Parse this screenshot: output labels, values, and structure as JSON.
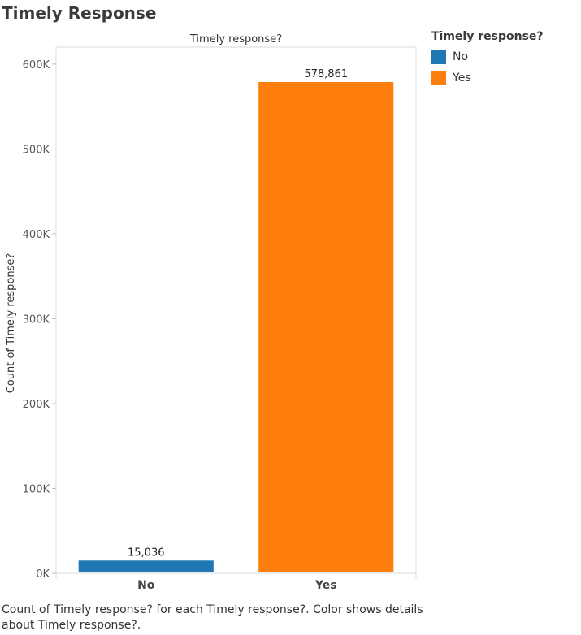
{
  "page": {
    "title": "Timely Response",
    "caption": "Count of Timely response? for each Timely response?.  Color shows details about Timely response?."
  },
  "legend": {
    "title": "Timely response?",
    "items": [
      {
        "label": "No",
        "color": "#1f77b4"
      },
      {
        "label": "Yes",
        "color": "#ff7f0e"
      }
    ]
  },
  "chart_data": {
    "type": "bar",
    "title": "Timely response?",
    "xlabel": "",
    "ylabel": "Count of Timely response?",
    "categories": [
      "No",
      "Yes"
    ],
    "values": [
      15036,
      578861
    ],
    "value_labels": [
      "15,036",
      "578,861"
    ],
    "colors": [
      "#1f77b4",
      "#ff7f0e"
    ],
    "ylim": [
      0,
      620000
    ],
    "yticks": [
      0,
      100000,
      200000,
      300000,
      400000,
      500000,
      600000
    ],
    "ytick_labels": [
      "0K",
      "100K",
      "200K",
      "300K",
      "400K",
      "500K",
      "600K"
    ],
    "grid": false,
    "legend_position": "top-right"
  }
}
